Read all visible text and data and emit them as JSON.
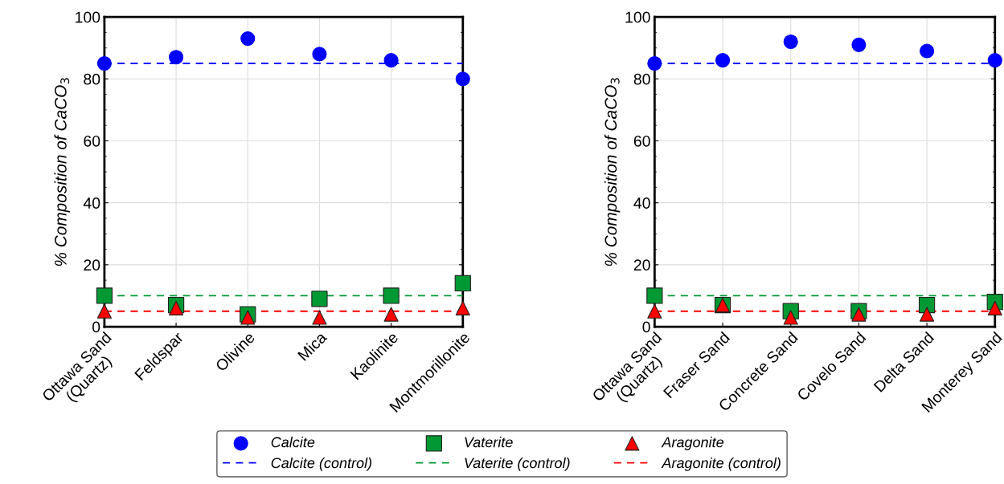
{
  "chart_data": [
    {
      "type": "scatter",
      "ylabel": "% Composition of CaCO$_{3}$",
      "categories": [
        "Ottawa Sand\n(Quartz)",
        "Feldspar",
        "Olivine",
        "Mica",
        "Kaolinite",
        "Montmorillonite"
      ],
      "ylim": [
        0,
        100
      ],
      "yticks": [
        0,
        20,
        40,
        60,
        80,
        100
      ],
      "grid": true,
      "legend": "bottom",
      "series": [
        {
          "name": "Calcite",
          "color": "#0000ff",
          "marker": "circle",
          "values": [
            85,
            87,
            93,
            88,
            86,
            80
          ]
        },
        {
          "name": "Calcite (control)",
          "type": "line",
          "color": "#0000ff",
          "marker": "none",
          "line_style": "dashed",
          "values": [
            85,
            85,
            85,
            85,
            85,
            85
          ]
        },
        {
          "name": "Vaterite",
          "color": "#009933",
          "marker": "square",
          "values": [
            10,
            7,
            4,
            9,
            10,
            14
          ]
        },
        {
          "name": "Vaterite (control)",
          "type": "line",
          "color": "#009933",
          "marker": "none",
          "line_style": "dashed",
          "values": [
            10,
            10,
            10,
            10,
            10,
            10
          ]
        },
        {
          "name": "Aragonite",
          "color": "#ff0000",
          "marker": "triangle",
          "values": [
            5,
            6,
            3,
            3,
            4,
            6
          ]
        },
        {
          "name": "Aragonite (control)",
          "type": "line",
          "color": "#ff0000",
          "marker": "none",
          "line_style": "dashed",
          "values": [
            5,
            5,
            5,
            5,
            5,
            5
          ]
        }
      ]
    },
    {
      "type": "scatter",
      "ylabel": "% Composition of CaCO$_{3}$",
      "categories": [
        "Ottawa Sand\n(Quartz)",
        "Fraser Sand",
        "Concrete Sand",
        "Covelo Sand",
        "Delta Sand",
        "Monterey Sand"
      ],
      "ylim": [
        0,
        100
      ],
      "yticks": [
        0,
        20,
        40,
        60,
        80,
        100
      ],
      "grid": true,
      "series": [
        {
          "color": "#0000ff",
          "marker": "circle",
          "values": [
            85,
            86,
            92,
            91,
            89,
            86
          ]
        },
        {
          "type": "line",
          "color": "#0000ff",
          "marker": "none",
          "line_style": "dashed",
          "values": [
            85,
            85,
            85,
            85,
            85,
            85
          ]
        },
        {
          "color": "#009933",
          "marker": "square",
          "values": [
            10,
            7,
            5,
            5,
            7,
            8
          ]
        },
        {
          "type": "line",
          "color": "#009933",
          "marker": "none",
          "line_style": "dashed",
          "values": [
            10,
            10,
            10,
            10,
            10,
            10
          ]
        },
        {
          "color": "#ff0000",
          "marker": "triangle",
          "values": [
            5,
            7,
            3,
            4,
            4,
            6
          ]
        },
        {
          "type": "line",
          "color": "#ff0000",
          "marker": "none",
          "line_style": "dashed",
          "values": [
            5,
            5,
            5,
            5,
            5,
            5
          ]
        }
      ]
    }
  ]
}
